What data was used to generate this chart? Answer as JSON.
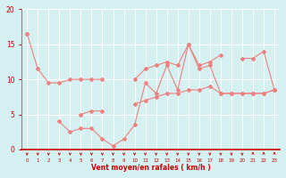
{
  "x": [
    0,
    1,
    2,
    3,
    4,
    5,
    6,
    7,
    8,
    9,
    10,
    11,
    12,
    13,
    14,
    15,
    16,
    17,
    18,
    19,
    20,
    21,
    22,
    23
  ],
  "series": [
    [
      16.5,
      11.5,
      9.5,
      9.5,
      10.0,
      10.0,
      10.0,
      10.0,
      null,
      null,
      10.0,
      11.5,
      12.0,
      12.5,
      12.0,
      15.0,
      12.0,
      12.5,
      13.5,
      null,
      13.0,
      13.0,
      14.0,
      8.5
    ],
    [
      16.5,
      null,
      null,
      4.0,
      2.5,
      3.0,
      3.0,
      1.5,
      0.5,
      1.5,
      3.5,
      9.5,
      8.0,
      12.0,
      8.5,
      15.0,
      11.5,
      12.0,
      8.0,
      8.0,
      8.0,
      8.0,
      8.0,
      8.5
    ],
    [
      null,
      null,
      null,
      null,
      null,
      5.0,
      5.5,
      5.5,
      null,
      null,
      6.5,
      7.0,
      7.5,
      8.0,
      8.0,
      8.5,
      8.5,
      9.0,
      8.0,
      8.0,
      8.0,
      8.0,
      8.0,
      8.5
    ]
  ],
  "arrow_up": [
    21,
    22,
    23
  ],
  "line_color": "#f08080",
  "bg_color": "#d4f0f0",
  "grid_color": "#ffffff",
  "axis_color": "#cc0000",
  "xlabel": "Vent moyen/en rafales ( km/h )",
  "xlim": [
    -0.5,
    23.5
  ],
  "ylim": [
    0,
    20
  ],
  "yticks": [
    0,
    5,
    10,
    15,
    20
  ],
  "xticks": [
    0,
    1,
    2,
    3,
    4,
    5,
    6,
    7,
    8,
    9,
    10,
    11,
    12,
    13,
    14,
    15,
    16,
    17,
    18,
    19,
    20,
    21,
    22,
    23
  ],
  "figsize": [
    3.2,
    2.0
  ],
  "dpi": 100
}
